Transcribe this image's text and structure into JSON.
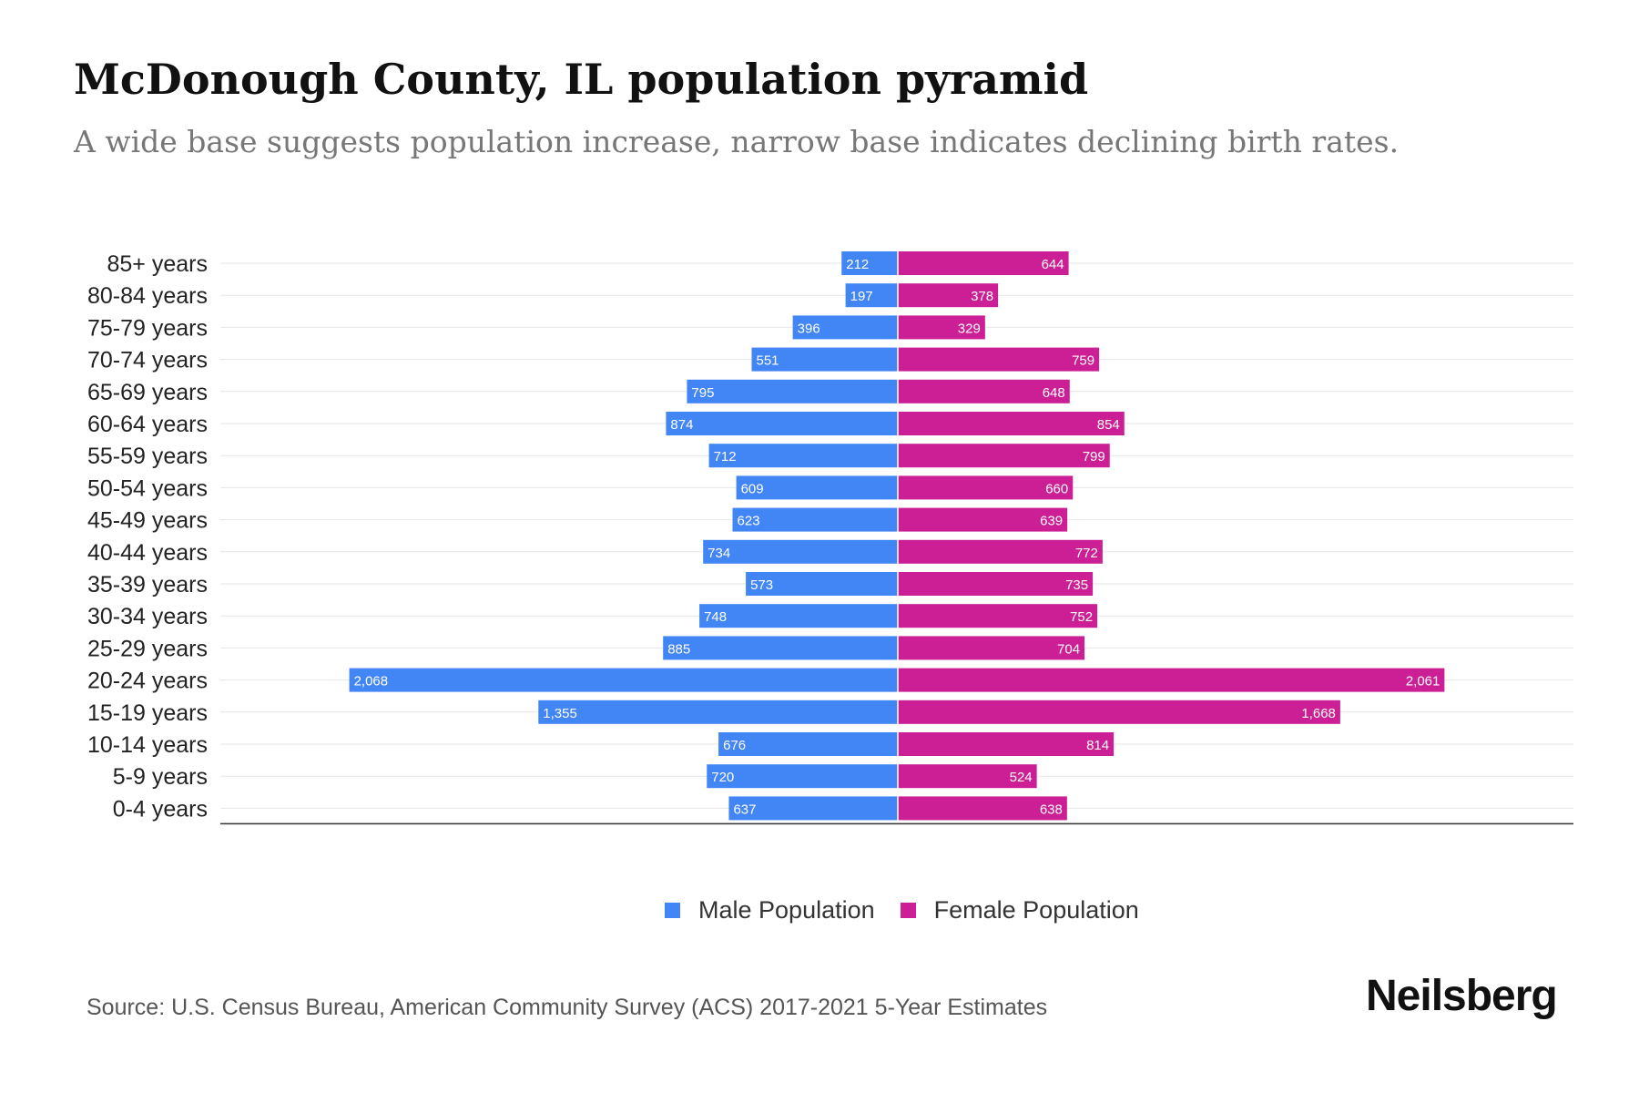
{
  "title": "McDonough County, IL population pyramid",
  "subtitle": "A wide base suggests population increase, narrow base indicates declining birth rates.",
  "source": "Source: U.S. Census Bureau, American Community Survey (ACS) 2017-2021 5-Year Estimates",
  "brand": "Neilsberg",
  "colors": {
    "male": "#4285f4",
    "female": "#cc1f95"
  },
  "legend": {
    "male": "Male Population",
    "female": "Female Population"
  },
  "chart_data": {
    "type": "bar",
    "orientation": "horizontal-pyramid",
    "categories": [
      "85+ years",
      "80-84 years",
      "75-79 years",
      "70-74 years",
      "65-69 years",
      "60-64 years",
      "55-59 years",
      "50-54 years",
      "45-49 years",
      "40-44 years",
      "35-39 years",
      "30-34 years",
      "25-29 years",
      "20-24 years",
      "15-19 years",
      "10-14 years",
      "5-9 years",
      "0-4 years"
    ],
    "series": [
      {
        "name": "Male Population",
        "values": [
          212,
          197,
          396,
          551,
          795,
          874,
          712,
          609,
          623,
          734,
          573,
          748,
          885,
          2068,
          1355,
          676,
          720,
          637
        ]
      },
      {
        "name": "Female Population",
        "values": [
          644,
          378,
          329,
          759,
          648,
          854,
          799,
          660,
          639,
          772,
          735,
          752,
          704,
          2061,
          1668,
          814,
          524,
          638
        ]
      }
    ],
    "max_abs": 2300,
    "grid": true,
    "legend_position": "bottom-center"
  }
}
